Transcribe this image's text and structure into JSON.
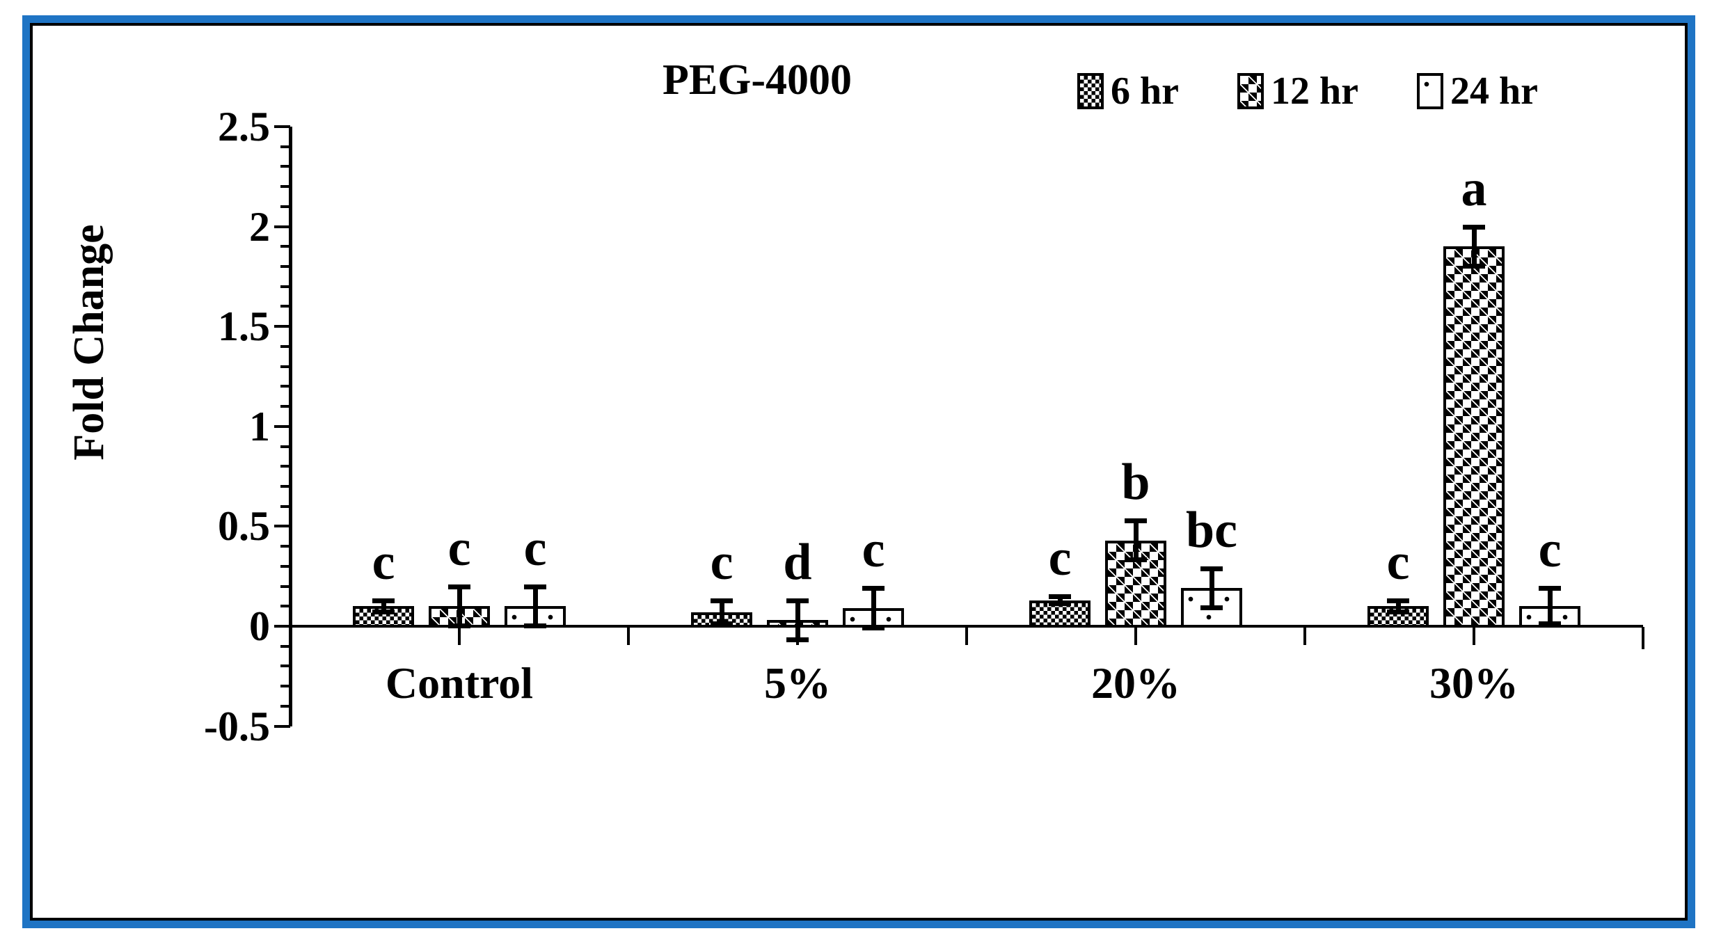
{
  "title": "PEG-4000",
  "style": {
    "frame_outer_color": "#1f74c4",
    "frame_inner_color": "#000000",
    "background": "#ffffff",
    "ink": "#000000"
  },
  "legend": {
    "position": "top-right",
    "items": [
      {
        "label": "6 hr",
        "pattern": "small-checkerboard"
      },
      {
        "label": "12 hr",
        "pattern": "large-diamond-lattice"
      },
      {
        "label": "24 hr",
        "pattern": "white-sparse-dots"
      }
    ]
  },
  "y_axis": {
    "label": "Fold Change",
    "tick_labels": [
      "2.5",
      "2",
      "1.5",
      "1",
      "0.5",
      "0",
      "-0.5"
    ],
    "major_step": 0.5,
    "minor_step": 0.1
  },
  "chart_data": {
    "type": "bar",
    "title": "PEG-4000",
    "xlabel": "",
    "ylabel": "Fold Change",
    "ylim": [
      -0.5,
      2.5
    ],
    "grid": false,
    "legend_position": "top-right",
    "categories": [
      "Control",
      "5%",
      "20%",
      "30%"
    ],
    "series": [
      {
        "name": "6 hr",
        "values": [
          0.1,
          0.07,
          0.13,
          0.1
        ],
        "errors": [
          0.03,
          0.06,
          0.02,
          0.03
        ],
        "letters": [
          "c",
          "c",
          "c",
          "c"
        ]
      },
      {
        "name": "12 hr",
        "values": [
          0.1,
          0.03,
          0.43,
          1.9
        ],
        "errors": [
          0.1,
          0.1,
          0.1,
          0.1
        ],
        "letters": [
          "c",
          "d",
          "b",
          "a"
        ]
      },
      {
        "name": "24 hr",
        "values": [
          0.1,
          0.09,
          0.19,
          0.1
        ],
        "errors": [
          0.1,
          0.1,
          0.1,
          0.09
        ],
        "letters": [
          "c",
          "c",
          "bc",
          "c"
        ]
      }
    ]
  }
}
